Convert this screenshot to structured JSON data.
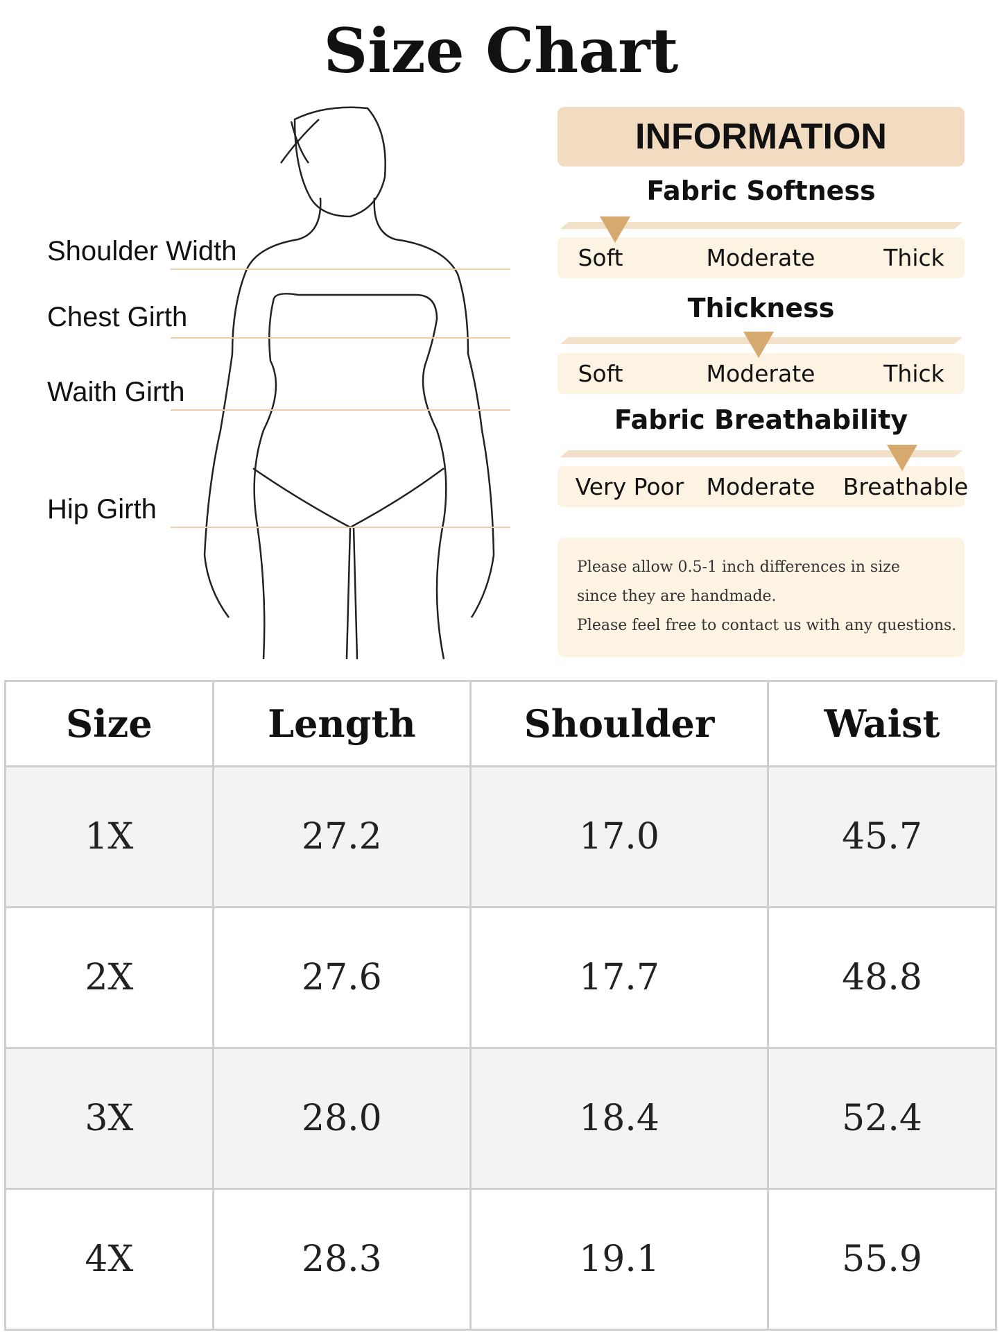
{
  "title": "Size Chart",
  "measurements": [
    "Shoulder Width",
    "Chest Girth",
    "Waith Girth",
    "Hip Girth"
  ],
  "info": {
    "header": "INFORMATION",
    "scales": [
      {
        "title": "Fabric Softness",
        "labels": [
          "Soft",
          "Moderate",
          "Thick"
        ],
        "selected": "Soft",
        "level": 0.05
      },
      {
        "title": "Thickness",
        "labels": [
          "Soft",
          "Moderate",
          "Thick"
        ],
        "selected": "Moderate",
        "level": 0.5
      },
      {
        "title": "Fabric Breathability",
        "labels": [
          "Very Poor",
          "Moderate",
          "Breathable"
        ],
        "selected": "Breathable",
        "level": 0.95
      }
    ],
    "note": [
      "Please allow 0.5-1 inch differences in size",
      "since they are handmade.",
      "Please feel free to contact us with any questions."
    ]
  },
  "colors": {
    "accent": "#d6a96e",
    "panel": "#fcf3e3",
    "header": "#f2dcc1",
    "guide_line": "#f0cfa8"
  },
  "table": {
    "headers": [
      "Size",
      "Length",
      "Shoulder",
      "Waist"
    ],
    "rows": [
      [
        "1X",
        "27.2",
        "17.0",
        "45.7"
      ],
      [
        "2X",
        "27.6",
        "17.7",
        "48.8"
      ],
      [
        "3X",
        "28.0",
        "18.4",
        "52.4"
      ],
      [
        "4X",
        "28.3",
        "19.1",
        "55.9"
      ]
    ]
  }
}
